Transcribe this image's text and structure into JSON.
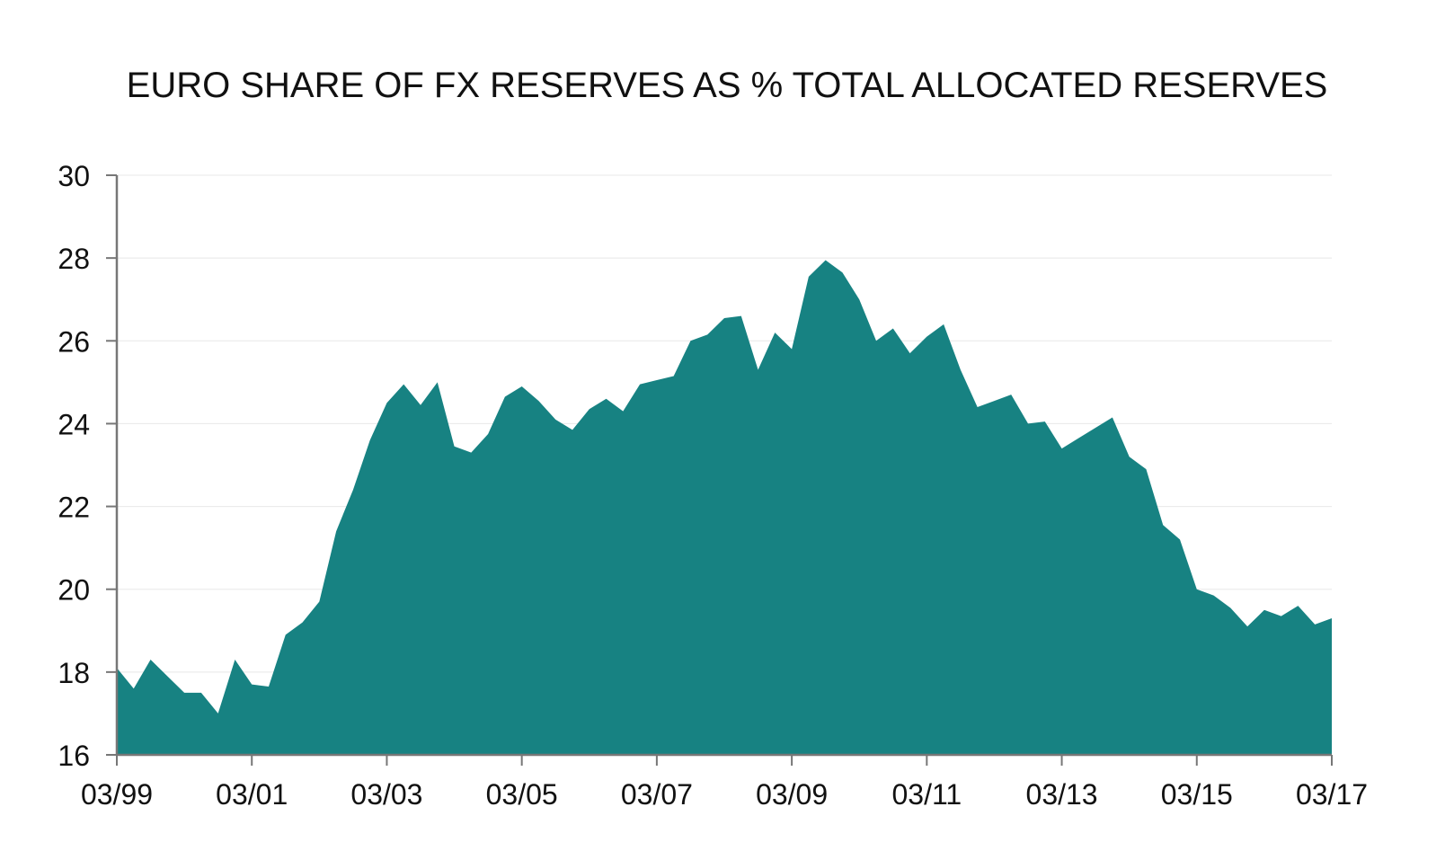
{
  "chart_data": {
    "type": "area",
    "title": "EURO SHARE OF FX RESERVES AS % TOTAL ALLOCATED RESERVES",
    "xlabel": "",
    "ylabel": "",
    "ylim": [
      16,
      30
    ],
    "yticks": [
      16,
      18,
      20,
      22,
      24,
      26,
      28,
      30
    ],
    "xticks": [
      "03/99",
      "03/01",
      "03/03",
      "03/05",
      "03/07",
      "03/09",
      "03/11",
      "03/13",
      "03/15",
      "03/17"
    ],
    "grid": true,
    "legend": "none",
    "fill_color": "#178282",
    "series": [
      {
        "x": [
          "03/99",
          "06/99",
          "09/99",
          "12/99",
          "03/00",
          "06/00",
          "09/00",
          "12/00",
          "03/01",
          "06/01",
          "09/01",
          "12/01",
          "03/02",
          "06/02",
          "09/02",
          "12/02",
          "03/03",
          "06/03",
          "09/03",
          "12/03",
          "03/04",
          "06/04",
          "09/04",
          "12/04",
          "03/05",
          "06/05",
          "09/05",
          "12/05",
          "03/06",
          "06/06",
          "09/06",
          "12/06",
          "03/07",
          "06/07",
          "09/07",
          "12/07",
          "03/08",
          "06/08",
          "09/08",
          "12/08",
          "03/09",
          "06/09",
          "09/09",
          "12/09",
          "03/10",
          "06/10",
          "09/10",
          "12/10",
          "03/11",
          "06/11",
          "09/11",
          "12/11",
          "03/12",
          "06/12",
          "09/12",
          "12/12",
          "03/13",
          "06/13",
          "09/13",
          "12/13",
          "03/14",
          "06/14",
          "09/14",
          "12/14",
          "03/15",
          "06/15",
          "09/15",
          "12/15",
          "03/16",
          "06/16",
          "09/16",
          "12/16",
          "03/17"
        ],
        "values": [
          18.1,
          17.6,
          18.3,
          17.9,
          17.5,
          17.5,
          17.0,
          18.3,
          17.7,
          17.65,
          18.9,
          19.2,
          19.7,
          21.4,
          22.4,
          23.6,
          24.5,
          24.95,
          24.45,
          25.0,
          23.45,
          23.3,
          23.75,
          24.65,
          24.9,
          24.55,
          24.1,
          23.85,
          24.35,
          24.6,
          24.3,
          24.95,
          25.05,
          25.15,
          26.0,
          26.15,
          26.55,
          26.6,
          25.3,
          26.2,
          25.8,
          27.55,
          27.95,
          27.65,
          27.0,
          26.0,
          26.3,
          25.7,
          26.1,
          26.4,
          25.3,
          24.4,
          24.55,
          24.7,
          24.0,
          24.05,
          23.4,
          23.65,
          23.9,
          24.15,
          23.2,
          22.9,
          21.55,
          21.2,
          20.0,
          19.85,
          19.55,
          19.1,
          19.5,
          19.35,
          19.6,
          19.15,
          19.3
        ]
      }
    ]
  }
}
